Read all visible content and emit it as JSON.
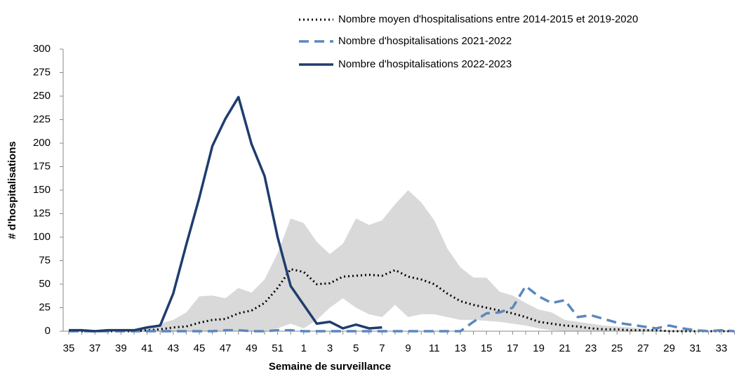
{
  "chart_data": {
    "type": "line",
    "xlabel": "Semaine de surveillance",
    "ylabel": "# d'hospitalisations",
    "categories": [
      35,
      null,
      37,
      null,
      39,
      null,
      41,
      null,
      43,
      null,
      45,
      null,
      47,
      null,
      49,
      null,
      51,
      null,
      1,
      null,
      3,
      null,
      5,
      null,
      7,
      null,
      9,
      null,
      11,
      null,
      13,
      null,
      15,
      null,
      17,
      null,
      19,
      null,
      21,
      null,
      23,
      null,
      25,
      null,
      27,
      null,
      29,
      null,
      31,
      null,
      33,
      null
    ],
    "ylim": [
      0,
      300
    ],
    "yticks": [
      0,
      25,
      50,
      75,
      100,
      125,
      150,
      175,
      200,
      225,
      250,
      275,
      300
    ],
    "band": {
      "color": "#d9d9d9",
      "upper": [
        0,
        0,
        0,
        0,
        0,
        2,
        3,
        8,
        12,
        20,
        37,
        38,
        35,
        46,
        41,
        55,
        83,
        120,
        115,
        95,
        82,
        93,
        120,
        113,
        118,
        135,
        150,
        137,
        118,
        88,
        68,
        57,
        57,
        42,
        38,
        30,
        23,
        20,
        12,
        10,
        8,
        6,
        5,
        4,
        3,
        2,
        1,
        1,
        0,
        0,
        0,
        0
      ],
      "lower": [
        0,
        0,
        0,
        0,
        0,
        0,
        0,
        0,
        0,
        0,
        0,
        0,
        0,
        0,
        0,
        0,
        3,
        8,
        3,
        12,
        25,
        35,
        25,
        18,
        15,
        28,
        15,
        18,
        18,
        15,
        12,
        12,
        11,
        10,
        8,
        6,
        3,
        1,
        0,
        0,
        0,
        0,
        0,
        0,
        0,
        0,
        0,
        0,
        0,
        0,
        0,
        0
      ]
    },
    "series": [
      {
        "name": "Nombre moyen d'hospitalisations entre 2014-2015 et 2019-2020",
        "color": "#000000",
        "style": "dotted",
        "values": [
          0,
          0,
          0,
          0,
          0,
          0,
          1,
          2,
          4,
          5,
          9,
          12,
          13,
          19,
          22,
          30,
          46,
          66,
          63,
          50,
          51,
          58,
          59,
          60,
          59,
          65,
          58,
          55,
          50,
          40,
          32,
          28,
          25,
          22,
          19,
          15,
          10,
          8,
          6,
          5,
          3,
          2,
          2,
          1,
          1,
          1,
          0,
          0,
          0,
          0,
          0,
          0
        ]
      },
      {
        "name": "Nombre d'hospitalisations 2021-2022",
        "color": "#5b87bd",
        "style": "dashed",
        "values": [
          0,
          0,
          0,
          0,
          0,
          0,
          0,
          0,
          0,
          0,
          0,
          0,
          1,
          1,
          0,
          0,
          1,
          1,
          0,
          0,
          0,
          0,
          0,
          0,
          0,
          0,
          0,
          0,
          0,
          0,
          0,
          10,
          19,
          20,
          25,
          48,
          37,
          30,
          33,
          15,
          17,
          13,
          9,
          7,
          5,
          3,
          6,
          3,
          1,
          0,
          1,
          0
        ]
      },
      {
        "name": "Nombre d'hospitalisations 2022-2023",
        "color": "#1f3d6e",
        "style": "solid",
        "values": [
          1,
          1,
          0,
          1,
          1,
          1,
          4,
          6,
          40,
          92,
          142,
          197,
          226,
          249,
          199,
          165,
          100,
          48,
          28,
          8,
          10,
          3,
          7,
          3,
          4,
          null,
          null,
          null,
          null,
          null,
          null,
          null,
          null,
          null,
          null,
          null,
          null,
          null,
          null,
          null,
          null,
          null,
          null,
          null,
          null,
          null,
          null,
          null,
          null,
          null,
          null,
          null
        ]
      }
    ]
  }
}
